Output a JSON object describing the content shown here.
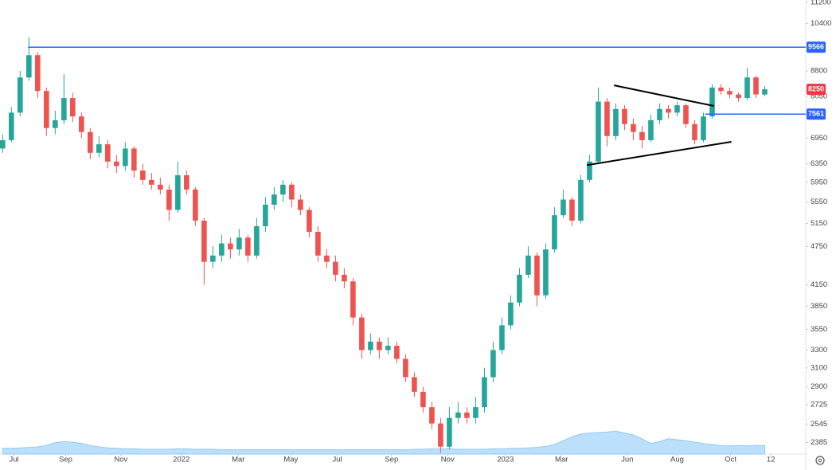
{
  "chart_data": {
    "type": "candlestick",
    "log_scale": true,
    "up_color": "#26a69a",
    "down_color": "#ef5350",
    "volume_color": "#90caf9",
    "ylim": [
      2290,
      11290
    ],
    "yticks": [
      11200,
      10400,
      8800,
      8050,
      6950,
      6350,
      5950,
      5550,
      5150,
      4750,
      4150,
      3850,
      3550,
      3300,
      3100,
      2900,
      2725,
      2545,
      2385
    ],
    "xlim": [
      -0.3,
      91.5
    ],
    "xticks": [
      {
        "value": 1.3,
        "label": "Jul"
      },
      {
        "value": 7.2,
        "label": "Sep"
      },
      {
        "value": 13.5,
        "label": "Nov"
      },
      {
        "value": 20.4,
        "label": "2022"
      },
      {
        "value": 26.9,
        "label": "Mar"
      },
      {
        "value": 32.9,
        "label": "May"
      },
      {
        "value": 38.2,
        "label": "Jul"
      },
      {
        "value": 44.4,
        "label": "Sep"
      },
      {
        "value": 50.8,
        "label": "Nov"
      },
      {
        "value": 57.4,
        "label": "2023"
      },
      {
        "value": 63.8,
        "label": "Mar"
      },
      {
        "value": 71.3,
        "label": "Jun"
      },
      {
        "value": 77,
        "label": "Aug"
      },
      {
        "value": 83.1,
        "label": "Oct"
      },
      {
        "value": 87.7,
        "label": "12"
      }
    ],
    "candles": [
      [
        6700,
        7050,
        6600,
        6900
      ],
      [
        6900,
        7750,
        6850,
        7600
      ],
      [
        7600,
        8800,
        7500,
        8600
      ],
      [
        8600,
        9900,
        8500,
        9300
      ],
      [
        9300,
        9400,
        8000,
        8200
      ],
      [
        8200,
        8300,
        7000,
        7200
      ],
      [
        7200,
        7650,
        7050,
        7400
      ],
      [
        7400,
        8700,
        7300,
        8000
      ],
      [
        8000,
        8150,
        7350,
        7500
      ],
      [
        7500,
        7600,
        6950,
        7100
      ],
      [
        7100,
        7200,
        6450,
        6600
      ],
      [
        6600,
        7000,
        6500,
        6800
      ],
      [
        6800,
        6900,
        6250,
        6400
      ],
      [
        6400,
        6550,
        6150,
        6300
      ],
      [
        6300,
        6850,
        6200,
        6700
      ],
      [
        6700,
        6750,
        6050,
        6200
      ],
      [
        6200,
        6350,
        5900,
        6000
      ],
      [
        6000,
        6150,
        5800,
        5900
      ],
      [
        5900,
        6050,
        5700,
        5800
      ],
      [
        5800,
        5900,
        5200,
        5400
      ],
      [
        5400,
        6400,
        5350,
        6100
      ],
      [
        6100,
        6200,
        5700,
        5800
      ],
      [
        5800,
        5850,
        5100,
        5200
      ],
      [
        5200,
        5250,
        4150,
        4500
      ],
      [
        4500,
        4750,
        4400,
        4600
      ],
      [
        4600,
        4950,
        4500,
        4800
      ],
      [
        4800,
        4900,
        4550,
        4700
      ],
      [
        4700,
        5050,
        4600,
        4900
      ],
      [
        4900,
        4950,
        4500,
        4600
      ],
      [
        4600,
        5250,
        4550,
        5100
      ],
      [
        5100,
        5650,
        5000,
        5500
      ],
      [
        5500,
        5850,
        5400,
        5700
      ],
      [
        5700,
        6000,
        5550,
        5900
      ],
      [
        5900,
        5950,
        5450,
        5600
      ],
      [
        5600,
        5700,
        5300,
        5400
      ],
      [
        5400,
        5450,
        4900,
        5000
      ],
      [
        5000,
        5100,
        4500,
        4600
      ],
      [
        4600,
        4700,
        4400,
        4500
      ],
      [
        4500,
        4600,
        4200,
        4300
      ],
      [
        4300,
        4400,
        4100,
        4200
      ],
      [
        4200,
        4250,
        3600,
        3700
      ],
      [
        3700,
        3750,
        3200,
        3300
      ],
      [
        3300,
        3500,
        3250,
        3400
      ],
      [
        3400,
        3450,
        3200,
        3300
      ],
      [
        3300,
        3450,
        3250,
        3350
      ],
      [
        3350,
        3400,
        3150,
        3200
      ],
      [
        3200,
        3250,
        2950,
        3000
      ],
      [
        3000,
        3050,
        2800,
        2850
      ],
      [
        2850,
        2900,
        2650,
        2700
      ],
      [
        2700,
        2750,
        2500,
        2550
      ],
      [
        2550,
        2600,
        2300,
        2350
      ],
      [
        2350,
        2700,
        2330,
        2600
      ],
      [
        2600,
        2750,
        2550,
        2650
      ],
      [
        2650,
        2700,
        2550,
        2600
      ],
      [
        2600,
        2800,
        2550,
        2700
      ],
      [
        2700,
        3100,
        2650,
        3000
      ],
      [
        3000,
        3400,
        2950,
        3300
      ],
      [
        3300,
        3700,
        3250,
        3600
      ],
      [
        3600,
        4000,
        3550,
        3900
      ],
      [
        3900,
        4400,
        3850,
        4300
      ],
      [
        4300,
        4750,
        4250,
        4600
      ],
      [
        4600,
        4650,
        3850,
        4000
      ],
      [
        4000,
        4800,
        3950,
        4700
      ],
      [
        4700,
        5450,
        4650,
        5300
      ],
      [
        5300,
        5800,
        5250,
        5600
      ],
      [
        5600,
        5650,
        5100,
        5200
      ],
      [
        5200,
        6100,
        5150,
        6000
      ],
      [
        6000,
        6550,
        5950,
        6400
      ],
      [
        6400,
        8300,
        6350,
        7900
      ],
      [
        7900,
        8000,
        6750,
        7000
      ],
      [
        7000,
        7850,
        6900,
        7700
      ],
      [
        7700,
        7800,
        7150,
        7300
      ],
      [
        7300,
        7450,
        6900,
        7100
      ],
      [
        7100,
        7250,
        6700,
        6900
      ],
      [
        6900,
        7550,
        6850,
        7400
      ],
      [
        7400,
        7850,
        7300,
        7700
      ],
      [
        7700,
        7800,
        7450,
        7600
      ],
      [
        7600,
        7900,
        7500,
        7800
      ],
      [
        7800,
        7850,
        7200,
        7300
      ],
      [
        7300,
        7400,
        6800,
        6900
      ],
      [
        6900,
        7600,
        6850,
        7500
      ],
      [
        7500,
        8400,
        7450,
        8300
      ],
      [
        8300,
        8400,
        8100,
        8200
      ],
      [
        8200,
        8300,
        8000,
        8100
      ],
      [
        8100,
        8150,
        7900,
        8000
      ],
      [
        8000,
        8900,
        7950,
        8600
      ],
      [
        8600,
        8650,
        8000,
        8100
      ],
      [
        8100,
        8350,
        8050,
        8250
      ]
    ],
    "volume_lim": [
      0,
      100
    ],
    "volume": [
      12,
      12,
      13,
      14,
      15,
      18,
      24,
      26,
      25,
      22,
      18,
      15,
      13,
      12,
      11,
      11,
      10,
      10,
      10,
      10,
      11,
      11,
      10,
      10,
      10,
      9,
      9,
      9,
      9,
      9,
      9,
      9,
      9,
      9,
      9,
      9,
      9,
      9,
      9,
      9,
      9,
      9,
      9,
      9,
      9,
      9,
      9,
      10,
      10,
      11,
      11,
      11,
      10,
      10,
      10,
      10,
      11,
      11,
      12,
      12,
      13,
      14,
      16,
      20,
      28,
      36,
      42,
      44,
      45,
      46,
      48,
      44,
      40,
      32,
      22,
      26,
      32,
      30,
      28,
      25,
      22,
      20,
      18,
      17,
      18,
      17,
      18,
      18
    ],
    "hlines": [
      {
        "value": 9566,
        "start": 2.9,
        "color": "#2962ff"
      },
      {
        "value": 7561,
        "start": 80.2,
        "color": "#2962ff"
      }
    ],
    "trendlines": [
      {
        "points": [
          [
            69.8,
            8365
          ],
          [
            81.2,
            7780
          ]
        ],
        "color": "#000000"
      },
      {
        "points": [
          [
            66.7,
            6320
          ],
          [
            83.2,
            6860
          ]
        ],
        "color": "#000000"
      }
    ],
    "last_price_color": "#f23645"
  }
}
